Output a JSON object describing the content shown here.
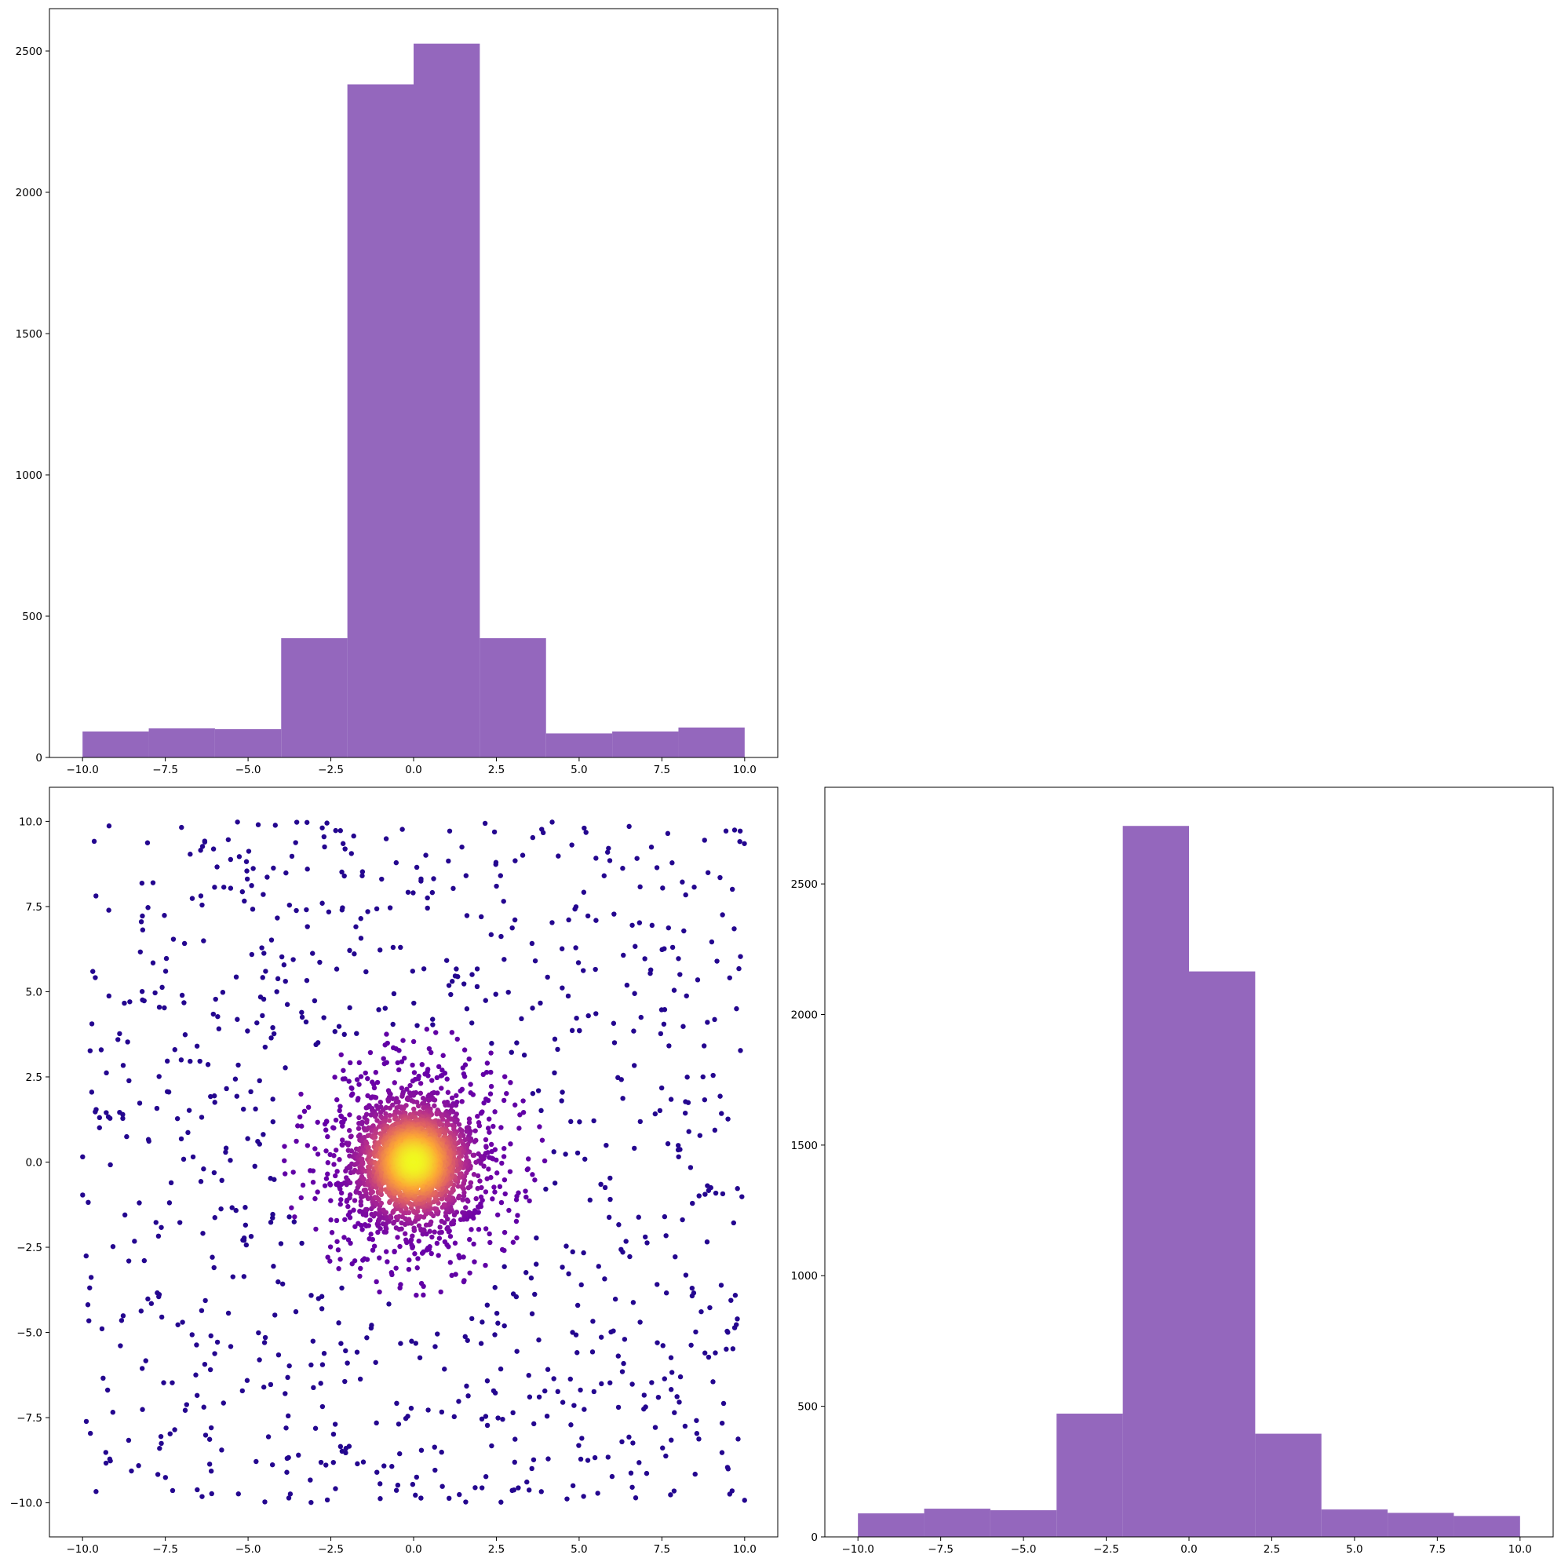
{
  "chart_data": [
    {
      "type": "bar",
      "title": "",
      "xlabel": "",
      "ylabel": "",
      "bin_edges": [
        -10,
        -8,
        -6,
        -4,
        -2,
        0,
        2,
        4,
        6,
        8,
        10
      ],
      "values": [
        92,
        103,
        100,
        422,
        2382,
        2526,
        422,
        85,
        92,
        106
      ],
      "xlim": [
        -11,
        11
      ],
      "ylim": [
        0,
        2650
      ],
      "xticks": [
        -10,
        -7.5,
        -5,
        -2.5,
        0,
        2.5,
        5,
        7.5,
        10
      ],
      "xtick_labels": [
        "−10.0",
        "−7.5",
        "−5.0",
        "−2.5",
        "0.0",
        "2.5",
        "5.0",
        "7.5",
        "10.0"
      ],
      "yticks": [
        0,
        500,
        1000,
        1500,
        2000,
        2500
      ],
      "ytick_labels": [
        "0",
        "500",
        "1000",
        "1500",
        "2000",
        "2500"
      ],
      "color": "#9467bd",
      "grid": false
    },
    {
      "type": "scatter",
      "title": "",
      "xlabel": "",
      "ylabel": "",
      "description_of_values": "~1000 points uniformly spread over [-10,10]x[-10,10] plus ~4000 points in a dense disc of radius ~4 centred at (0,0); colour encodes point density (plasma colormap: dark purple = low, yellow = high)",
      "uniform_points": 1000,
      "cluster_points": 4000,
      "cluster_center": [
        0,
        0
      ],
      "cluster_radius": 4,
      "xlim": [
        -11,
        11
      ],
      "ylim": [
        -11,
        11
      ],
      "xticks": [
        -10,
        -7.5,
        -5,
        -2.5,
        0,
        2.5,
        5,
        7.5,
        10
      ],
      "xtick_labels": [
        "−10.0",
        "−7.5",
        "−5.0",
        "−2.5",
        "0.0",
        "2.5",
        "5.0",
        "7.5",
        "10.0"
      ],
      "yticks": [
        -10,
        -7.5,
        -5,
        -2.5,
        0,
        2.5,
        5,
        7.5,
        10
      ],
      "ytick_labels": [
        "−10.0",
        "−7.5",
        "−5.0",
        "−2.5",
        "0.0",
        "2.5",
        "5.0",
        "7.5",
        "10.0"
      ],
      "colormap": [
        "#0d0887",
        "#6a00a8",
        "#b12a90",
        "#e16462",
        "#fca636",
        "#f0f921"
      ],
      "grid": false
    },
    {
      "type": "bar",
      "title": "",
      "xlabel": "",
      "ylabel": "",
      "bin_edges": [
        -10,
        -8,
        -6,
        -4,
        -2,
        0,
        2,
        4,
        6,
        8,
        10
      ],
      "values": [
        90,
        108,
        102,
        472,
        2722,
        2165,
        395,
        105,
        92,
        80
      ],
      "xlim": [
        -11,
        11
      ],
      "ylim": [
        0,
        2870
      ],
      "xticks": [
        -10,
        -7.5,
        -5,
        -2.5,
        0,
        2.5,
        5,
        7.5,
        10
      ],
      "xtick_labels": [
        "−10.0",
        "−7.5",
        "−5.0",
        "−2.5",
        "0.0",
        "2.5",
        "5.0",
        "7.5",
        "10.0"
      ],
      "yticks": [
        0,
        500,
        1000,
        1500,
        2000,
        2500
      ],
      "ytick_labels": [
        "0",
        "500",
        "1000",
        "1500",
        "2000",
        "2500"
      ],
      "color": "#9467bd",
      "grid": false
    }
  ]
}
